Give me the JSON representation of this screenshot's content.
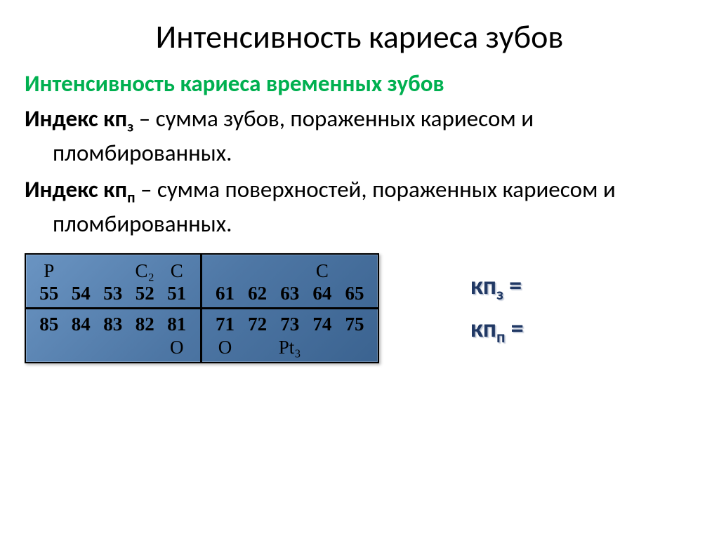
{
  "title": "Интенсивность кариеса зубов",
  "subtitle": "Интенсивность кариеса временных зубов",
  "para1": {
    "strong": "Индекс кп",
    "sub": "з",
    "rest": " – сумма зубов, пораженных кариесом и пломбированных."
  },
  "para2": {
    "strong": "Индекс кп",
    "sub": "п",
    "rest": " – сумма поверхностей, пораженных кариесом и пломбированных."
  },
  "chart": {
    "q1": {
      "status": [
        "P",
        "",
        "",
        "C₂",
        "C"
      ],
      "nums": [
        "55",
        "54",
        "53",
        "52",
        "51"
      ]
    },
    "q2": {
      "status": [
        "",
        "",
        "",
        "C",
        ""
      ],
      "nums": [
        "61",
        "62",
        "63",
        "64",
        "65"
      ]
    },
    "q3": {
      "nums": [
        "85",
        "84",
        "83",
        "82",
        "81"
      ],
      "status": [
        "",
        "",
        "",
        "",
        "O"
      ]
    },
    "q4": {
      "nums": [
        "71",
        "72",
        "73",
        "74",
        "75"
      ],
      "status": [
        "O",
        "",
        "Pt₃",
        "",
        ""
      ]
    }
  },
  "formulas": {
    "f1": {
      "pre": "кп",
      "sub": "з",
      "post": " ="
    },
    "f2": {
      "pre": "кп",
      "sub": "п",
      "post": " ="
    }
  },
  "colors": {
    "title": "#000000",
    "subtitle": "#00b050",
    "text": "#000000",
    "formula": "#203864",
    "chart_bg_top": "#6a94c2",
    "chart_bg_bottom": "#3b6390",
    "chart_border": "#000000"
  }
}
